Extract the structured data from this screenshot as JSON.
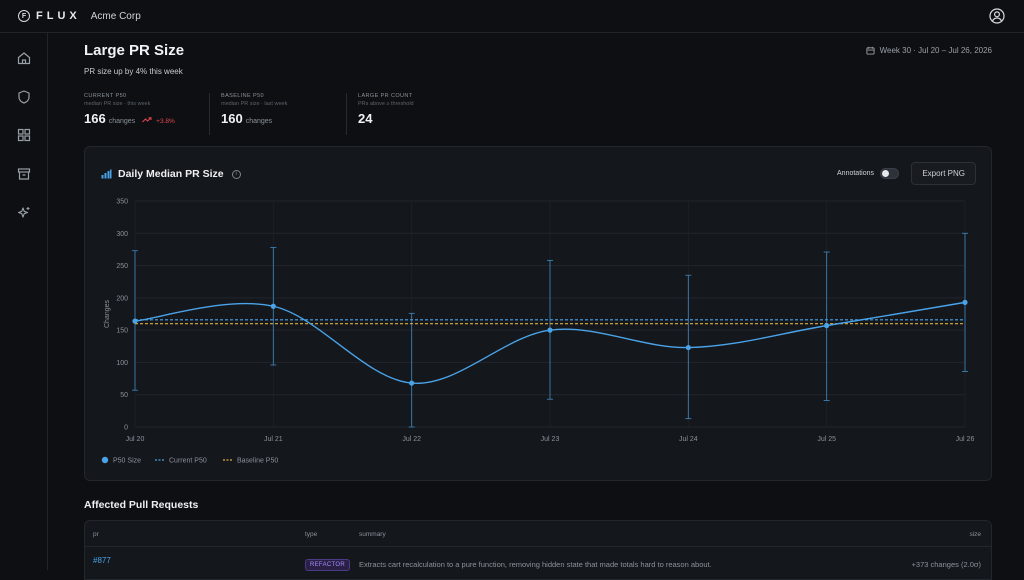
{
  "app": {
    "logo_mark": "F",
    "logo": "FLUX",
    "org": "Acme Corp"
  },
  "icons": [
    "user-circle-icon",
    "home-icon",
    "shield-icon",
    "grid-icon",
    "archive-icon",
    "sparkles-icon",
    "calendar-icon",
    "bar-chart-icon",
    "info-icon"
  ],
  "page": {
    "title": "Large PR Size",
    "subtitle": "PR size up by 4% this week",
    "week": "Week 30 · Jul 20 – Jul 26, 2026"
  },
  "kpis": [
    {
      "label": "CURRENT P50",
      "sub": "median PR size · this week",
      "value": "166",
      "unit": "changes",
      "delta": "+3.8%"
    },
    {
      "label": "BASELINE P50",
      "sub": "median PR size · last week",
      "value": "160",
      "unit": "changes"
    },
    {
      "label": "LARGE PR COUNT",
      "sub": "PRs above ≥ threshold",
      "value": "24"
    }
  ],
  "chart_card": {
    "title": "Daily Median PR Size",
    "info": "i",
    "annotations_label": "Annotations",
    "export_label": "Export PNG"
  },
  "chart_data": {
    "type": "line",
    "x": [
      "Jul 20",
      "Jul 21",
      "Jul 22",
      "Jul 23",
      "Jul 24",
      "Jul 25",
      "Jul 26"
    ],
    "series": [
      {
        "name": "P50 Size",
        "values": [
          164,
          187,
          68,
          150,
          123,
          157,
          193
        ],
        "low": [
          57,
          96,
          0,
          43,
          13,
          41,
          86
        ],
        "high": [
          273,
          278,
          176,
          258,
          235,
          271,
          300
        ]
      },
      {
        "name": "Current P50",
        "constant": 166
      },
      {
        "name": "Baseline P50",
        "constant": 160
      }
    ],
    "ylabel": "Changes",
    "ylim": [
      0,
      350
    ],
    "yticks": [
      0,
      50,
      100,
      150,
      200,
      250,
      300,
      350
    ],
    "grid": true,
    "legend": "bottom-left",
    "colors": {
      "p50": "#4aa3e8",
      "current": "#4aa3e8",
      "baseline": "#e0b03c"
    }
  },
  "table": {
    "section_title": "Affected Pull Requests",
    "columns": {
      "pr": "pr",
      "type": "type",
      "summary": "summary",
      "size": "size"
    },
    "rows": [
      {
        "pr": "#877",
        "type": "REFACTOR",
        "summary": "Extracts cart recalculation to a pure function, removing hidden state that made totals hard to reason about.",
        "size": "+373 changes (2.0σ)"
      }
    ]
  }
}
